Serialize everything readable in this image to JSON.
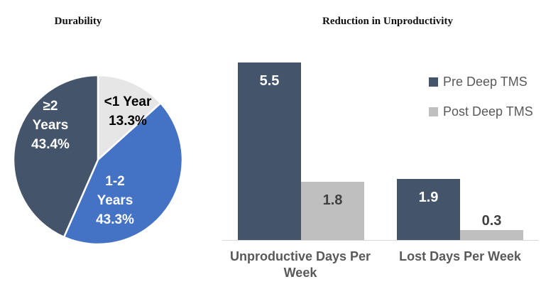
{
  "figure": {
    "background_color": "#FFFFFF",
    "axis_line_color": "#D9D9D9"
  },
  "chart_data": [
    {
      "type": "pie",
      "title": "Durability",
      "start_angle_deg": 0,
      "direction": "clockwise",
      "slices": [
        {
          "label": "<1 Year",
          "value": 13.3,
          "display": [
            "<1 Year",
            "13.3%"
          ],
          "color": "#E7E6E6",
          "label_color": "#000000"
        },
        {
          "label": "1-2 Years",
          "value": 43.3,
          "display": [
            "1-2",
            "Years",
            "43.3%"
          ],
          "color": "#4472C4",
          "label_color": "#FFFFFF"
        },
        {
          "label": "≥2 Years",
          "value": 43.4,
          "display": [
            "≥2",
            "Years",
            "43.4%"
          ],
          "color": "#44546A",
          "label_color": "#FFFFFF"
        }
      ]
    },
    {
      "type": "bar",
      "title": "Reduction in Unproductivity",
      "categories": [
        "Unproductive Days Per Week",
        "Lost Days Per Week"
      ],
      "series": [
        {
          "name": "Pre Deep TMS",
          "values": [
            5.5,
            1.9
          ],
          "color": "#44546A",
          "label_color": "#FFFFFF"
        },
        {
          "name": "Post Deep TMS",
          "values": [
            1.8,
            0.3
          ],
          "color": "#BFBFBF",
          "label_color": "#404040"
        }
      ],
      "ylim": [
        0,
        5.5
      ],
      "data_labels": true,
      "gridlines": false,
      "y_axis_visible": false,
      "legend_position": "right"
    }
  ]
}
